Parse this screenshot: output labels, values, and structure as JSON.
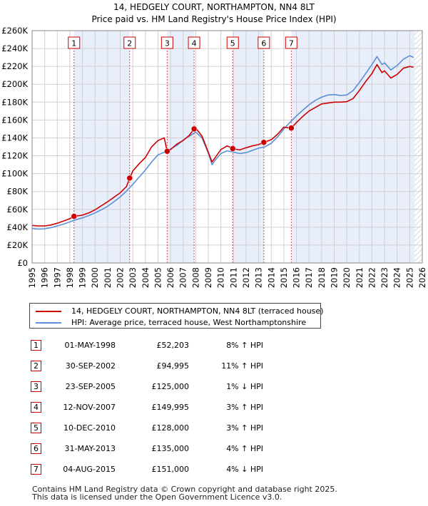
{
  "chart_data": {
    "type": "line",
    "title": "14, HEDGELY COURT, NORTHAMPTON, NN4 8LT",
    "subtitle": "Price paid vs. HM Land Registry's House Price Index (HPI)",
    "x_range": [
      1995,
      2026
    ],
    "ylim": [
      0,
      260000
    ],
    "y_ticks": [
      0,
      20000,
      40000,
      60000,
      80000,
      100000,
      120000,
      140000,
      160000,
      180000,
      200000,
      220000,
      240000,
      260000
    ],
    "y_tick_labels": [
      "£0",
      "£20K",
      "£40K",
      "£60K",
      "£80K",
      "£100K",
      "£120K",
      "£140K",
      "£160K",
      "£180K",
      "£200K",
      "£220K",
      "£240K",
      "£260K"
    ],
    "x_ticks": [
      1995,
      1996,
      1997,
      1998,
      1999,
      2000,
      2001,
      2002,
      2003,
      2004,
      2005,
      2006,
      2007,
      2008,
      2009,
      2010,
      2011,
      2012,
      2013,
      2014,
      2015,
      2016,
      2017,
      2018,
      2019,
      2020,
      2021,
      2022,
      2023,
      2024,
      2025,
      2026
    ],
    "x_tick_labels": [
      "1995",
      "1996",
      "1997",
      "1998",
      "1999",
      "2000",
      "2001",
      "2002",
      "2003",
      "2004",
      "2005",
      "2006",
      "2007",
      "2008",
      "2009",
      "2010",
      "2011",
      "2012",
      "2013",
      "2014",
      "2015",
      "2016",
      "2017",
      "2018",
      "2019",
      "2020",
      "2021",
      "2022",
      "2023",
      "2024",
      "2025",
      "2026"
    ],
    "grid": true,
    "series": [
      {
        "name": "14, HEDGELY COURT, NORTHAMPTON, NN4 8LT (terraced house)",
        "color": "#cc0000",
        "points": [
          [
            1995.0,
            42000
          ],
          [
            1995.5,
            41500
          ],
          [
            1996.0,
            41500
          ],
          [
            1996.5,
            42500
          ],
          [
            1997.0,
            44500
          ],
          [
            1997.5,
            47000
          ],
          [
            1998.0,
            49500
          ],
          [
            1998.33,
            52203
          ],
          [
            1999.0,
            53500
          ],
          [
            1999.5,
            56000
          ],
          [
            2000.0,
            59500
          ],
          [
            2000.5,
            64000
          ],
          [
            2001.0,
            68500
          ],
          [
            2001.5,
            73500
          ],
          [
            2002.0,
            78500
          ],
          [
            2002.5,
            85500
          ],
          [
            2002.75,
            94995
          ],
          [
            2003.0,
            103000
          ],
          [
            2003.5,
            111000
          ],
          [
            2004.0,
            118000
          ],
          [
            2004.5,
            130000
          ],
          [
            2005.0,
            137000
          ],
          [
            2005.5,
            140000
          ],
          [
            2005.73,
            125000
          ],
          [
            2006.0,
            127000
          ],
          [
            2006.5,
            133000
          ],
          [
            2007.0,
            137000
          ],
          [
            2007.5,
            143000
          ],
          [
            2007.87,
            149995
          ],
          [
            2008.0,
            151000
          ],
          [
            2008.5,
            142000
          ],
          [
            2009.0,
            124000
          ],
          [
            2009.3,
            113000
          ],
          [
            2009.6,
            119000
          ],
          [
            2010.0,
            127000
          ],
          [
            2010.5,
            131000
          ],
          [
            2010.94,
            128000
          ],
          [
            2011.5,
            126500
          ],
          [
            2012.0,
            129000
          ],
          [
            2012.5,
            131000
          ],
          [
            2013.0,
            132500
          ],
          [
            2013.41,
            135000
          ],
          [
            2014.0,
            138000
          ],
          [
            2014.5,
            144000
          ],
          [
            2015.0,
            152000
          ],
          [
            2015.59,
            151000
          ],
          [
            2016.0,
            157000
          ],
          [
            2016.5,
            164000
          ],
          [
            2017.0,
            170000
          ],
          [
            2017.5,
            174000
          ],
          [
            2018.0,
            178000
          ],
          [
            2018.5,
            179000
          ],
          [
            2019.0,
            180000
          ],
          [
            2019.5,
            180000
          ],
          [
            2020.0,
            180500
          ],
          [
            2020.5,
            184000
          ],
          [
            2021.0,
            193000
          ],
          [
            2021.5,
            203000
          ],
          [
            2022.0,
            212000
          ],
          [
            2022.4,
            222000
          ],
          [
            2022.8,
            213000
          ],
          [
            2023.0,
            215000
          ],
          [
            2023.5,
            207000
          ],
          [
            2024.0,
            211000
          ],
          [
            2024.5,
            218000
          ],
          [
            2025.0,
            220000
          ],
          [
            2025.3,
            219000
          ]
        ]
      },
      {
        "name": "HPI: Average price, terraced house, West Northamptonshire",
        "color": "#5b8fd6",
        "points": [
          [
            1995.0,
            38500
          ],
          [
            1995.5,
            38000
          ],
          [
            1996.0,
            38300
          ],
          [
            1996.5,
            39500
          ],
          [
            1997.0,
            41500
          ],
          [
            1997.5,
            43500
          ],
          [
            1998.0,
            46000
          ],
          [
            1998.5,
            48500
          ],
          [
            1999.0,
            50500
          ],
          [
            1999.5,
            53000
          ],
          [
            2000.0,
            56000
          ],
          [
            2000.5,
            59500
          ],
          [
            2001.0,
            63500
          ],
          [
            2001.5,
            68500
          ],
          [
            2002.0,
            74000
          ],
          [
            2002.5,
            80500
          ],
          [
            2003.0,
            88000
          ],
          [
            2003.5,
            96000
          ],
          [
            2004.0,
            104000
          ],
          [
            2004.5,
            113000
          ],
          [
            2005.0,
            121000
          ],
          [
            2005.5,
            124000
          ],
          [
            2006.0,
            127500
          ],
          [
            2006.5,
            131500
          ],
          [
            2007.0,
            137500
          ],
          [
            2007.5,
            142000
          ],
          [
            2008.0,
            146500
          ],
          [
            2008.5,
            140000
          ],
          [
            2009.0,
            123000
          ],
          [
            2009.3,
            110000
          ],
          [
            2009.6,
            116000
          ],
          [
            2010.0,
            122500
          ],
          [
            2010.5,
            125500
          ],
          [
            2011.0,
            124000
          ],
          [
            2011.5,
            122500
          ],
          [
            2012.0,
            123500
          ],
          [
            2012.5,
            126000
          ],
          [
            2013.0,
            128500
          ],
          [
            2013.5,
            130000
          ],
          [
            2014.0,
            134000
          ],
          [
            2014.5,
            141000
          ],
          [
            2015.0,
            150000
          ],
          [
            2015.5,
            157500
          ],
          [
            2016.0,
            164500
          ],
          [
            2016.5,
            171000
          ],
          [
            2017.0,
            177000
          ],
          [
            2017.5,
            182000
          ],
          [
            2018.0,
            185500
          ],
          [
            2018.5,
            188000
          ],
          [
            2019.0,
            188500
          ],
          [
            2019.5,
            187500
          ],
          [
            2020.0,
            188000
          ],
          [
            2020.5,
            193000
          ],
          [
            2021.0,
            202000
          ],
          [
            2021.5,
            212000
          ],
          [
            2022.0,
            222000
          ],
          [
            2022.4,
            231000
          ],
          [
            2022.8,
            222000
          ],
          [
            2023.0,
            224000
          ],
          [
            2023.5,
            216000
          ],
          [
            2024.0,
            221000
          ],
          [
            2024.5,
            228000
          ],
          [
            2025.0,
            232000
          ],
          [
            2025.3,
            230000
          ]
        ]
      }
    ],
    "sales": [
      {
        "label": "1",
        "x": 1998.33,
        "price": 52203
      },
      {
        "label": "2",
        "x": 2002.75,
        "price": 94995
      },
      {
        "label": "3",
        "x": 2005.73,
        "price": 125000
      },
      {
        "label": "4",
        "x": 2007.87,
        "price": 149995
      },
      {
        "label": "5",
        "x": 2010.94,
        "price": 128000
      },
      {
        "label": "6",
        "x": 2013.41,
        "price": 135000
      },
      {
        "label": "7",
        "x": 2015.59,
        "price": 151000
      }
    ],
    "future_from": 2025.4,
    "colors": {
      "price": "#cc0000",
      "hpi": "#5b8fd6",
      "highlight": "#e8eefa",
      "grid": "#d0d0d0",
      "future_hatch": "#cccccc"
    }
  },
  "legend": {
    "property_label": "14, HEDGELY COURT, NORTHAMPTON, NN4 8LT (terraced house)",
    "hpi_label": "HPI: Average price, terraced house, West Northamptonshire"
  },
  "sales_table": [
    {
      "num": "1",
      "date": "01-MAY-1998",
      "price": "£52,203",
      "hpi": "8% ↑ HPI"
    },
    {
      "num": "2",
      "date": "30-SEP-2002",
      "price": "£94,995",
      "hpi": "11% ↑ HPI"
    },
    {
      "num": "3",
      "date": "23-SEP-2005",
      "price": "£125,000",
      "hpi": "1% ↓ HPI"
    },
    {
      "num": "4",
      "date": "12-NOV-2007",
      "price": "£149,995",
      "hpi": "3% ↑ HPI"
    },
    {
      "num": "5",
      "date": "10-DEC-2010",
      "price": "£128,000",
      "hpi": "3% ↑ HPI"
    },
    {
      "num": "6",
      "date": "31-MAY-2013",
      "price": "£135,000",
      "hpi": "4% ↑ HPI"
    },
    {
      "num": "7",
      "date": "04-AUG-2015",
      "price": "£151,000",
      "hpi": "4% ↓ HPI"
    }
  ],
  "footer": {
    "line1": "Contains HM Land Registry data © Crown copyright and database right 2025.",
    "line2": "This data is licensed under the Open Government Licence v3.0."
  }
}
